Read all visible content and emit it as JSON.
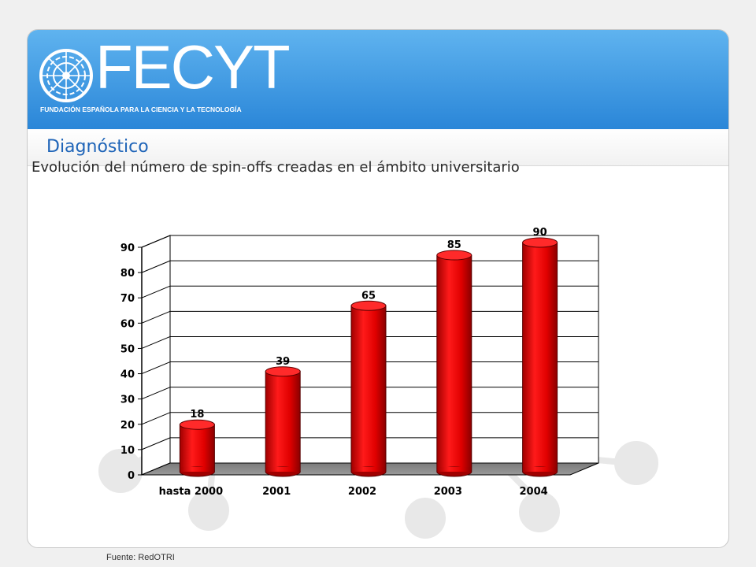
{
  "header": {
    "logo_text": "FECYT",
    "tagline": "FUNDACIÓN ESPAÑOLA PARA LA CIENCIA Y LA TECNOLOGÍA",
    "section_title": "Diagnóstico"
  },
  "subtitle": "Evolución del número de spin-offs creadas en el ámbito universitario",
  "footer": {
    "source": "Fuente: RedOTRI"
  },
  "colors": {
    "header_blue": "#3a95e0",
    "bar_red": "#e00000",
    "title_blue": "#1e64b8"
  },
  "chart_data": {
    "type": "bar",
    "title": "Evolución del número de spin-offs creadas en el ámbito universitario",
    "categories": [
      "hasta 2000",
      "2001",
      "2002",
      "2003",
      "2004"
    ],
    "values": [
      18,
      39,
      65,
      85,
      90
    ],
    "data_labels": [
      "18",
      "39",
      "65",
      "85",
      "90"
    ],
    "yticks": [
      "0",
      "10",
      "20",
      "30",
      "40",
      "50",
      "60",
      "70",
      "80",
      "90"
    ],
    "ylim": [
      0,
      90
    ],
    "xlabel": "",
    "ylabel": "",
    "grid": true,
    "legend": "none"
  }
}
